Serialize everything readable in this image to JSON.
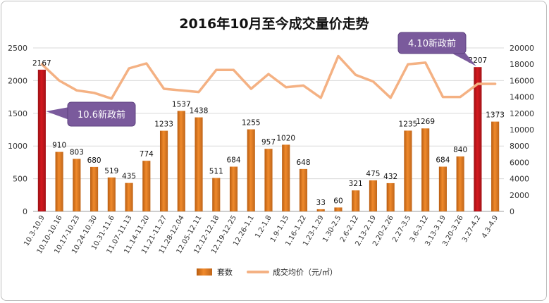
{
  "chart_data": {
    "type": "bar",
    "title": "2016年10月至今成交量价走势",
    "categories": [
      "10.3-10.9",
      "10.10-10.16",
      "10.17-10.23",
      "10.24-10.30",
      "10.31-11.6",
      "11.07-11.13",
      "11.14-11.20",
      "11.21-11.27",
      "11.28-12.04",
      "12.05-12.11",
      "12.12-12.18",
      "12.19-12.25",
      "12.26-1.1",
      "1.2-1.8",
      "1.9-1.15",
      "1.16-1.22",
      "1.23-1.29",
      "1.30-2.5",
      "2.6-2.12",
      "2.13-2.19",
      "2.20-2.26",
      "2.27-3.5",
      "3.6-3.12",
      "3.13-3.19",
      "3.20-3.26",
      "3.27-4.2",
      "4.3-4.9"
    ],
    "series": [
      {
        "name": "套数",
        "axis": "left",
        "values": [
          2167,
          910,
          803,
          680,
          519,
          435,
          774,
          1233,
          1537,
          1438,
          511,
          684,
          1255,
          957,
          1020,
          648,
          33,
          60,
          321,
          475,
          432,
          1235,
          1269,
          684,
          840,
          2207,
          1373
        ],
        "highlight_indices": [
          0,
          25
        ]
      },
      {
        "name": "成交均价（元/㎡）",
        "axis": "right",
        "values": [
          18000,
          16000,
          14800,
          14500,
          13800,
          17500,
          18100,
          15000,
          14800,
          14600,
          17300,
          17300,
          15000,
          16800,
          15200,
          15400,
          13900,
          19000,
          16700,
          15900,
          13900,
          18000,
          18200,
          14000,
          14000,
          15600,
          15600
        ]
      }
    ],
    "y_left": {
      "min": 0,
      "max": 2500,
      "ticks": [
        0,
        500,
        1000,
        1500,
        2000,
        2500
      ]
    },
    "y_right": {
      "min": 0,
      "max": 20000,
      "ticks": [
        0,
        2000,
        4000,
        6000,
        8000,
        10000,
        12000,
        14000,
        16000,
        18000,
        20000
      ]
    },
    "grid": true,
    "legend_position": "bottom",
    "annotations": [
      {
        "text": "10.6新政前",
        "category_index": 0
      },
      {
        "text": "4.10新政前",
        "category_index": 25
      }
    ],
    "colors": {
      "bar": "#e07a1f",
      "bar_highlight": "#c0161c",
      "line": "#f4b183",
      "callout": "#7a5a9c",
      "grid": "#d9d9d9"
    }
  }
}
